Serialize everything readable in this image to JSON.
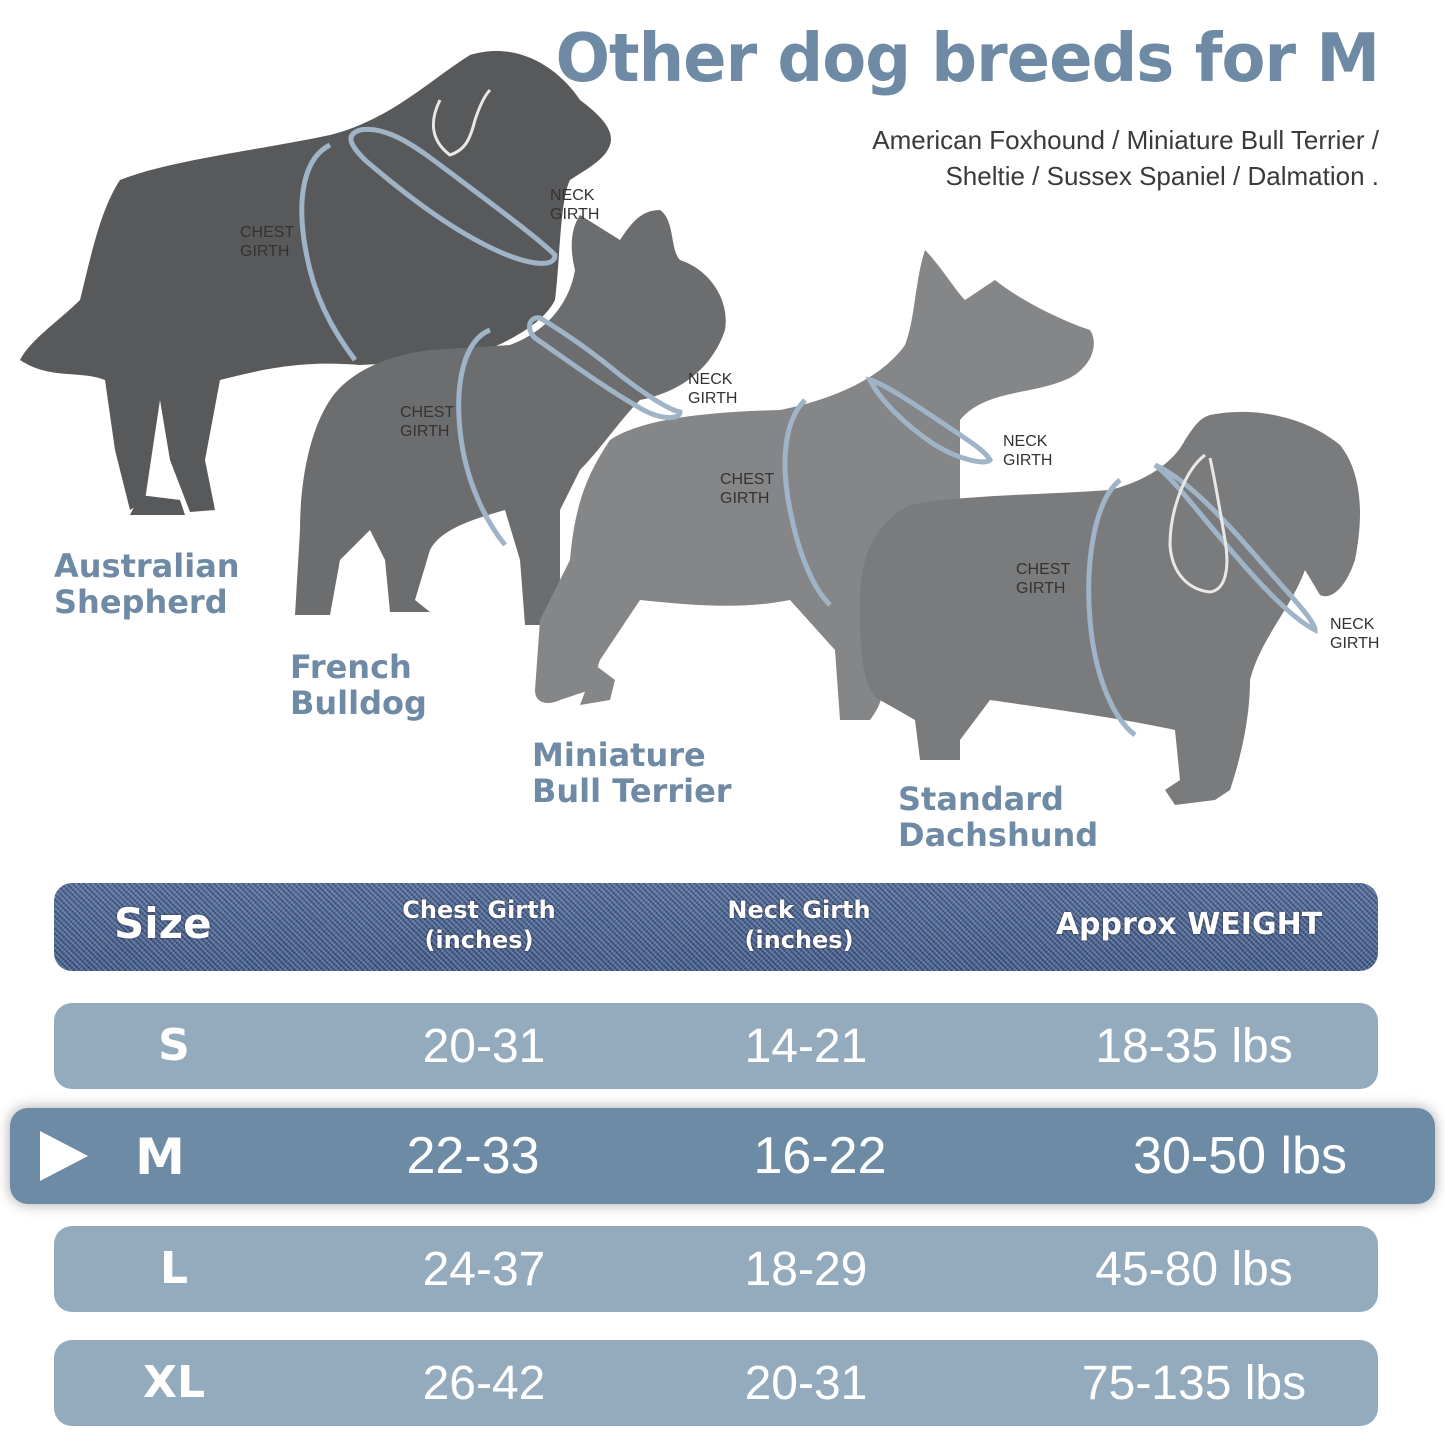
{
  "header": {
    "title": "Other dog breeds for M",
    "subtitle_line1": "American Foxhound / Miniature Bull Terrier /",
    "subtitle_line2": "Sheltie / Sussex Spaniel / Dalmation ."
  },
  "breeds": [
    {
      "line1": "Australian",
      "line2": "Shepherd"
    },
    {
      "line1": "French",
      "line2": "Bulldog"
    },
    {
      "line1": "Miniature",
      "line2": "Bull Terrier"
    },
    {
      "line1": "Standard",
      "line2": "Dachshund"
    }
  ],
  "labels": {
    "chest_line1": "CHEST",
    "chest_line2": "GIRTH",
    "neck_line1": "NECK",
    "neck_line2": "GIRTH"
  },
  "table": {
    "headers": {
      "size": "Size",
      "chest_line1": "Chest Girth",
      "chest_line2": "(inches)",
      "neck_line1": "Neck Girth",
      "neck_line2": "(inches)",
      "weight": "Approx WEIGHT"
    },
    "rows": [
      {
        "size": "S",
        "chest": "20-31",
        "neck": "14-21",
        "weight": "18-35 lbs"
      },
      {
        "size": "M",
        "chest": "22-33",
        "neck": "16-22",
        "weight": "30-50 lbs",
        "selected": true
      },
      {
        "size": "L",
        "chest": "24-37",
        "neck": "18-29",
        "weight": "45-80 lbs"
      },
      {
        "size": "XL",
        "chest": "26-42",
        "neck": "20-31",
        "weight": "75-135 lbs"
      }
    ]
  },
  "colors": {
    "accent": "#6e8aa4",
    "row_bg": "#94aabd",
    "row_selected_bg": "#6e8ba6",
    "denim": "#4a6595",
    "dog1": "#58595b",
    "dog2": "#6c6d6f",
    "dog3": "#858688",
    "dog4": "#7a7b7d",
    "girth_ring": "#9fb4c6"
  },
  "icons": [
    "play-icon"
  ]
}
